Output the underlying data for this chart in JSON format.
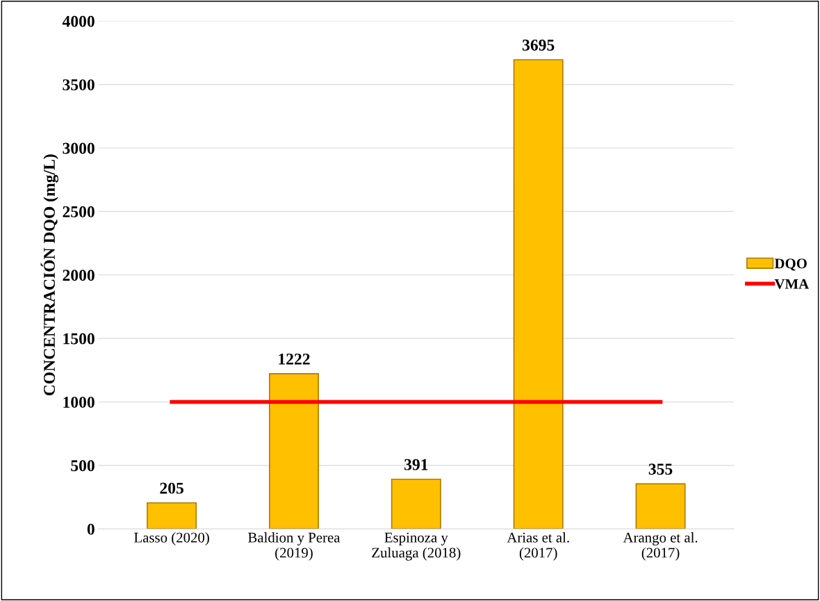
{
  "chart_data": {
    "type": "bar",
    "ylabel": "CONCENTRACIÓN DQO (mg/L)",
    "categories": [
      "Lasso (2020)",
      "Baldion y Perea\n(2019)",
      "Espinoza y\nZuluaga (2018)",
      "Arias et al.\n(2017)",
      "Arango et al.\n(2017)"
    ],
    "series": [
      {
        "name": "DQO",
        "color": "#ffc000",
        "values": [
          205,
          1222,
          391,
          3695,
          355
        ],
        "data_labels": true
      },
      {
        "name": "VMA",
        "type": "line",
        "color": "#ff0000",
        "values": [
          1000,
          1000,
          1000,
          1000,
          1000
        ]
      }
    ],
    "ylim": [
      0,
      4000
    ],
    "yticks": [
      0,
      500,
      1000,
      1500,
      2000,
      2500,
      3000,
      3500,
      4000
    ],
    "grid": "y",
    "legend": "right",
    "marker": "none",
    "line_style": "solid"
  }
}
